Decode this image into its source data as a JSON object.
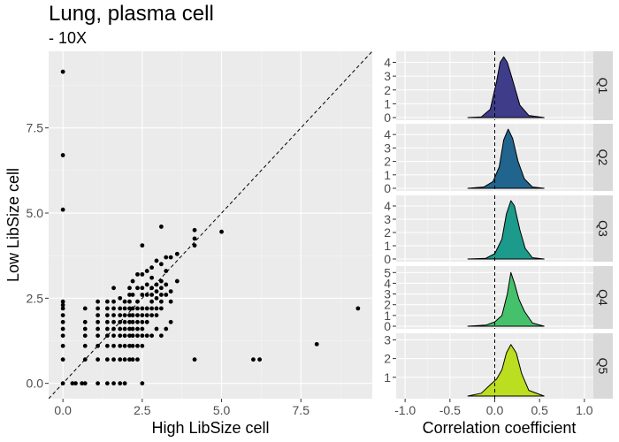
{
  "title": "Lung, plasma cell",
  "subtitle": "- 10X",
  "chart_data": [
    {
      "type": "scatter",
      "xlabel": "High LibSize cell",
      "ylabel": "Low LibSize cell",
      "xlim": [
        -0.45,
        9.75
      ],
      "ylim": [
        -0.45,
        9.75
      ],
      "xticks": [
        0,
        2.5,
        5,
        7.5
      ],
      "xtick_labels": [
        "0.0",
        "2.5",
        "5.0",
        "7.5"
      ],
      "yticks": [
        0,
        2.5,
        5,
        7.5
      ],
      "ytick_labels": [
        "0.0",
        "2.5",
        "5.0",
        "7.5"
      ],
      "reference_line": "y = x (dashed)",
      "grid": true,
      "points": [
        [
          0,
          9.15
        ],
        [
          0,
          6.7
        ],
        [
          0,
          5.1
        ],
        [
          0,
          2.4
        ],
        [
          0,
          2.3
        ],
        [
          0,
          2.2
        ],
        [
          0,
          2.0
        ],
        [
          0,
          1.8
        ],
        [
          0,
          1.6
        ],
        [
          0,
          1.4
        ],
        [
          0,
          1.1
        ],
        [
          0,
          0.7
        ],
        [
          0,
          0
        ],
        [
          0.3,
          0
        ],
        [
          0.4,
          0
        ],
        [
          0.6,
          0
        ],
        [
          0.7,
          0
        ],
        [
          0.7,
          0.7
        ],
        [
          0.7,
          1.1
        ],
        [
          0.7,
          1.4
        ],
        [
          0.7,
          1.6
        ],
        [
          0.7,
          1.8
        ],
        [
          0.7,
          2.2
        ],
        [
          1.1,
          0
        ],
        [
          1.1,
          0.7
        ],
        [
          1.1,
          1.1
        ],
        [
          1.1,
          1.4
        ],
        [
          1.1,
          1.6
        ],
        [
          1.1,
          1.8
        ],
        [
          1.1,
          2.0
        ],
        [
          1.1,
          2.2
        ],
        [
          1.1,
          2.4
        ],
        [
          1.4,
          0
        ],
        [
          1.4,
          0.7
        ],
        [
          1.4,
          1.1
        ],
        [
          1.4,
          1.4
        ],
        [
          1.4,
          1.6
        ],
        [
          1.4,
          1.8
        ],
        [
          1.4,
          2.0
        ],
        [
          1.4,
          2.2
        ],
        [
          1.4,
          2.4
        ],
        [
          1.6,
          0
        ],
        [
          1.6,
          0.7
        ],
        [
          1.6,
          1.1
        ],
        [
          1.6,
          1.4
        ],
        [
          1.6,
          1.6
        ],
        [
          1.6,
          1.8
        ],
        [
          1.6,
          2.0
        ],
        [
          1.6,
          2.2
        ],
        [
          1.6,
          2.4
        ],
        [
          1.6,
          2.8
        ],
        [
          1.8,
          0
        ],
        [
          1.8,
          0.7
        ],
        [
          1.8,
          1.1
        ],
        [
          1.8,
          1.4
        ],
        [
          1.8,
          1.6
        ],
        [
          1.8,
          1.8
        ],
        [
          1.8,
          2.0
        ],
        [
          1.8,
          2.2
        ],
        [
          1.8,
          2.5
        ],
        [
          1.95,
          0
        ],
        [
          1.95,
          0.7
        ],
        [
          1.95,
          1.1
        ],
        [
          1.95,
          1.4
        ],
        [
          1.95,
          1.6
        ],
        [
          1.95,
          1.8
        ],
        [
          1.95,
          2.0
        ],
        [
          1.95,
          2.2
        ],
        [
          1.95,
          2.4
        ],
        [
          2.1,
          0.7
        ],
        [
          2.1,
          1.1
        ],
        [
          2.1,
          1.4
        ],
        [
          2.1,
          1.6
        ],
        [
          2.1,
          1.8
        ],
        [
          2.1,
          2.0
        ],
        [
          2.1,
          2.2
        ],
        [
          2.1,
          2.4
        ],
        [
          2.1,
          2.6
        ],
        [
          2.1,
          2.8
        ],
        [
          2.2,
          0.7
        ],
        [
          2.2,
          1.1
        ],
        [
          2.2,
          1.4
        ],
        [
          2.2,
          1.6
        ],
        [
          2.2,
          1.8
        ],
        [
          2.2,
          2.0
        ],
        [
          2.2,
          2.2
        ],
        [
          2.2,
          2.6
        ],
        [
          2.2,
          3.0
        ],
        [
          2.35,
          0.7
        ],
        [
          2.35,
          1.1
        ],
        [
          2.35,
          1.4
        ],
        [
          2.35,
          1.6
        ],
        [
          2.35,
          1.8
        ],
        [
          2.35,
          2.0
        ],
        [
          2.35,
          2.2
        ],
        [
          2.35,
          2.4
        ],
        [
          2.35,
          2.8
        ],
        [
          2.35,
          3.2
        ],
        [
          2.5,
          0
        ],
        [
          2.5,
          1.1
        ],
        [
          2.5,
          1.4
        ],
        [
          2.5,
          1.6
        ],
        [
          2.5,
          1.8
        ],
        [
          2.5,
          2.0
        ],
        [
          2.5,
          2.2
        ],
        [
          2.5,
          2.6
        ],
        [
          2.5,
          2.8
        ],
        [
          2.5,
          3.2
        ],
        [
          2.5,
          4.05
        ],
        [
          2.65,
          1.4
        ],
        [
          2.65,
          1.8
        ],
        [
          2.65,
          2.0
        ],
        [
          2.65,
          2.2
        ],
        [
          2.65,
          2.6
        ],
        [
          2.65,
          2.9
        ],
        [
          2.65,
          3.3
        ],
        [
          2.8,
          1.4
        ],
        [
          2.8,
          2.0
        ],
        [
          2.8,
          2.2
        ],
        [
          2.8,
          2.4
        ],
        [
          2.8,
          2.6
        ],
        [
          2.8,
          2.8
        ],
        [
          2.8,
          3.1
        ],
        [
          2.8,
          3.4
        ],
        [
          2.95,
          1.6
        ],
        [
          2.95,
          2.0
        ],
        [
          2.95,
          2.2
        ],
        [
          2.95,
          2.5
        ],
        [
          2.95,
          2.7
        ],
        [
          2.95,
          2.9
        ],
        [
          2.95,
          3.6
        ],
        [
          3.1,
          1.4
        ],
        [
          3.1,
          2.2
        ],
        [
          3.1,
          2.4
        ],
        [
          3.1,
          2.6
        ],
        [
          3.1,
          2.8
        ],
        [
          3.1,
          3.0
        ],
        [
          3.1,
          3.5
        ],
        [
          3.1,
          4.6
        ],
        [
          3.25,
          1.6
        ],
        [
          3.25,
          2.6
        ],
        [
          3.25,
          2.9
        ],
        [
          3.25,
          3.3
        ],
        [
          3.25,
          3.7
        ],
        [
          3.4,
          1.8
        ],
        [
          3.4,
          2.4
        ],
        [
          3.4,
          2.7
        ],
        [
          3.4,
          3.7
        ],
        [
          3.6,
          3.8
        ],
        [
          3.6,
          3.0
        ],
        [
          4.15,
          0.7
        ],
        [
          4.15,
          4.05
        ],
        [
          4.15,
          4.25
        ],
        [
          4.15,
          4.5
        ],
        [
          5.0,
          4.45
        ],
        [
          6.0,
          0.7
        ],
        [
          6.2,
          0.7
        ],
        [
          8.0,
          1.15
        ],
        [
          9.3,
          2.2
        ]
      ]
    },
    {
      "type": "ridgeline",
      "xlabel": "Correlation coefficient",
      "xlim": [
        -1.1,
        1.1
      ],
      "xticks": [
        -1,
        -0.5,
        0,
        0.5,
        1
      ],
      "xtick_labels": [
        "-1.0",
        "-0.5",
        "0.0",
        "0.5",
        "1.0"
      ],
      "reference_line": "x = 0 (dashed)",
      "facets": [
        {
          "label": "Q1",
          "ymax": 4.8,
          "yticks": [
            0,
            1,
            2,
            3,
            4
          ],
          "color": "#3f3d8a",
          "peak_x": 0.1,
          "peak_y": 4.4,
          "x": [
            -0.3,
            -0.15,
            -0.05,
            0.02,
            0.06,
            0.1,
            0.14,
            0.2,
            0.28,
            0.38,
            0.55
          ],
          "y": [
            0,
            0.05,
            0.6,
            2.6,
            4.0,
            4.4,
            4.0,
            2.7,
            0.9,
            0.15,
            0
          ]
        },
        {
          "label": "Q2",
          "ymax": 4.8,
          "yticks": [
            0,
            1,
            2,
            3,
            4
          ],
          "color": "#21648d",
          "peak_x": 0.15,
          "peak_y": 4.4,
          "x": [
            -0.3,
            -0.12,
            -0.02,
            0.05,
            0.1,
            0.15,
            0.2,
            0.26,
            0.33,
            0.42,
            0.55
          ],
          "y": [
            0,
            0.1,
            0.5,
            1.6,
            3.6,
            4.4,
            3.7,
            2.0,
            0.7,
            0.1,
            0
          ]
        },
        {
          "label": "Q3",
          "ymax": 4.8,
          "yticks": [
            0,
            1,
            2,
            3,
            4
          ],
          "color": "#1c9a8b",
          "peak_x": 0.18,
          "peak_y": 4.4,
          "x": [
            -0.3,
            -0.1,
            0.0,
            0.08,
            0.13,
            0.18,
            0.22,
            0.28,
            0.34,
            0.42,
            0.55
          ],
          "y": [
            0,
            0.05,
            0.4,
            1.5,
            3.4,
            4.4,
            4.0,
            2.2,
            0.8,
            0.1,
            0
          ]
        },
        {
          "label": "Q4",
          "ymax": 5.6,
          "yticks": [
            0,
            1,
            2,
            3,
            4,
            5
          ],
          "color": "#46c16b",
          "peak_x": 0.18,
          "peak_y": 5.0,
          "x": [
            -0.3,
            -0.1,
            0.0,
            0.08,
            0.14,
            0.18,
            0.22,
            0.27,
            0.33,
            0.42,
            0.55
          ],
          "y": [
            0,
            0.1,
            0.4,
            1.0,
            3.0,
            5.0,
            4.0,
            2.5,
            1.4,
            0.3,
            0
          ]
        },
        {
          "label": "Q5",
          "ymax": 3.35,
          "yticks": [
            1,
            2,
            3
          ],
          "ytick_labels": [
            "1",
            "2",
            "3"
          ],
          "color": "#bcde20",
          "peak_x": 0.18,
          "peak_y": 2.75,
          "x": [
            -0.3,
            -0.15,
            -0.05,
            0.02,
            0.08,
            0.13,
            0.18,
            0.24,
            0.3,
            0.38,
            0.55
          ],
          "y": [
            0,
            0.15,
            0.6,
            0.9,
            1.4,
            2.3,
            2.75,
            2.3,
            1.2,
            0.3,
            0
          ]
        }
      ]
    }
  ]
}
